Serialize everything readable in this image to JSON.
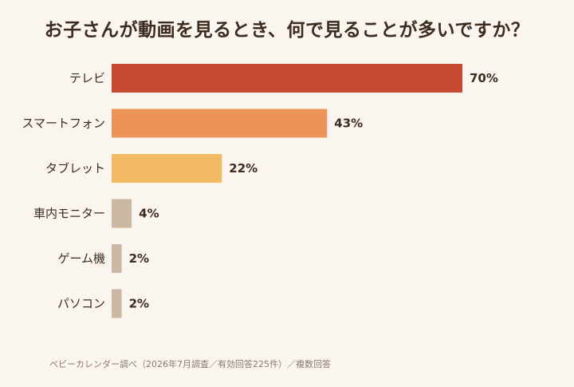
{
  "chart_data": {
    "type": "bar",
    "orientation": "horizontal",
    "title": "お子さんが動画を見るとき、何で見ることが多いですか？",
    "categories": [
      "テレビ",
      "スマートフォン",
      "タブレット",
      "車内モニター",
      "ゲーム機",
      "パソコン"
    ],
    "values": [
      70,
      43,
      22,
      4,
      2,
      2
    ],
    "value_labels": [
      "70%",
      "43%",
      "22%",
      "4%",
      "2%",
      "2%"
    ],
    "colors": [
      "#c44a32",
      "#ec935a",
      "#f0b962",
      "#cbb7a2",
      "#cbb7a2",
      "#cbb7a2"
    ],
    "xlim": [
      0,
      70
    ],
    "grid": false,
    "source": "ベビーカレンダー調べ（2026年7月調査／有効回答225件）／複数回答"
  }
}
